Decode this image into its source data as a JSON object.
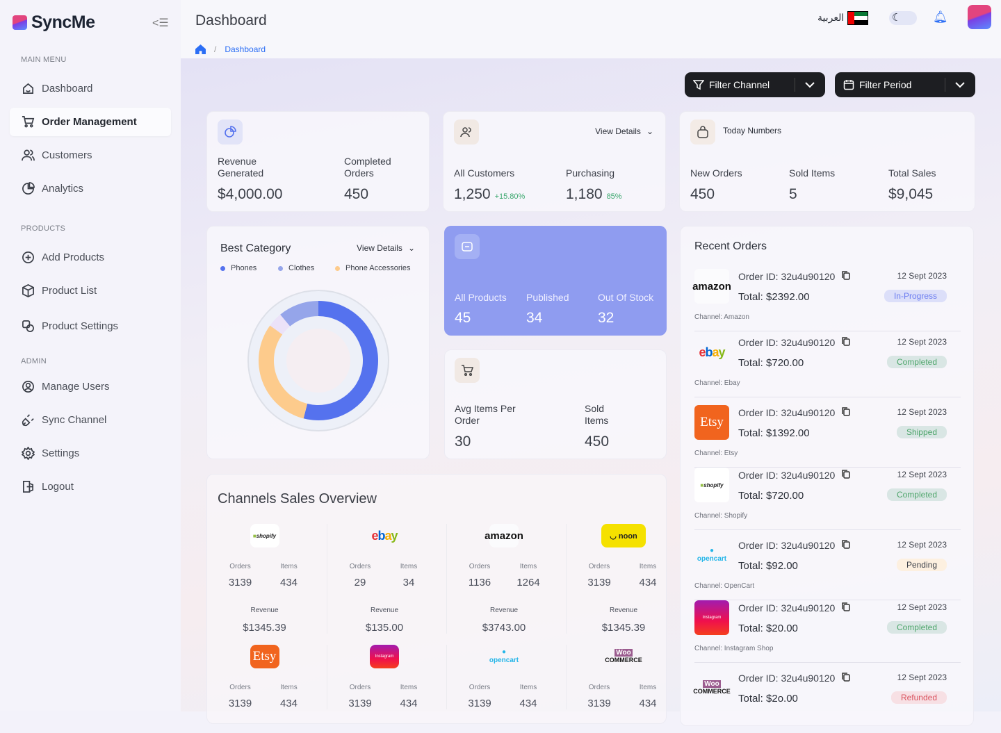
{
  "app": {
    "name": "SyncMe"
  },
  "sidebar": {
    "main_menu": "MAIN MENU",
    "products": "PRODUCTS",
    "admin": "ADMIN",
    "items": [
      {
        "label": "Dashboard",
        "icon": "home-icon"
      },
      {
        "label": "Order Management",
        "icon": "cart-icon",
        "active": true
      },
      {
        "label": "Customers",
        "icon": "users-icon"
      },
      {
        "label": "Analytics",
        "icon": "pie-chart-icon"
      },
      {
        "label": "Add Products",
        "icon": "plus-circle-icon"
      },
      {
        "label": "Product List",
        "icon": "box-icon"
      },
      {
        "label": "Product Settings",
        "icon": "product-settings-icon"
      },
      {
        "label": "Manage Users",
        "icon": "user-circle-icon"
      },
      {
        "label": "Sync Channel",
        "icon": "plug-icon"
      },
      {
        "label": "Settings",
        "icon": "gear-icon"
      },
      {
        "label": "Logout",
        "icon": "logout-icon"
      }
    ]
  },
  "header": {
    "title": "Dashboard",
    "breadcrumb": "Dashboard",
    "language": "العربية"
  },
  "filters": {
    "channel": "Filter Channel",
    "period": "Filter Period"
  },
  "stats": {
    "revenue": {
      "label1": "Revenue Generated",
      "value1": "$4,000.00",
      "label2": "Completed Orders",
      "value2": "450"
    },
    "customers": {
      "view": "View Details",
      "label1": "All Customers",
      "value1": "1,250",
      "change1": "+15.80%",
      "label2": "Purchasing",
      "value2": "1,180",
      "change2": "85%"
    },
    "today": {
      "title": "Today Numbers",
      "label1": "New Orders",
      "value1": "450",
      "label2": "Sold Items",
      "value2": "5",
      "label3": "Total Sales",
      "value3": "$9,045"
    }
  },
  "best_category": {
    "title": "Best Category",
    "view": "View Details",
    "legend": [
      {
        "name": "Phones",
        "color": "#5572ee"
      },
      {
        "name": "Clothes",
        "color": "#95a5ea"
      },
      {
        "name": "Phone Accessories",
        "color": "#fdcb8c"
      }
    ],
    "segments": [
      {
        "name": "Phones",
        "share": 54,
        "color": "#5572ee"
      },
      {
        "name": "Phone Accessories",
        "share": 31,
        "color": "#fdcb8c"
      },
      {
        "name": "",
        "share": 4,
        "color": "#ebe2f8"
      },
      {
        "name": "Clothes",
        "share": 11,
        "color": "#95a5ea"
      }
    ]
  },
  "products": {
    "label1": "All Products",
    "value1": "45",
    "label2": "Published",
    "value2": "34",
    "label3": "Out Of Stock",
    "value3": "32"
  },
  "avg": {
    "label1": "Avg Items Per Order",
    "value1": "30",
    "label2": "Sold Items",
    "value2": "450"
  },
  "channels": {
    "title": "Channels Sales Overview",
    "orders_label": "Orders",
    "items_label": "Items",
    "revenue_label": "Revenue",
    "list": [
      {
        "name": "shopify",
        "orders": "3139",
        "items": "434",
        "revenue": "$1345.39"
      },
      {
        "name": "ebay",
        "orders": "29",
        "items": "34",
        "revenue": "$135.00"
      },
      {
        "name": "amazon",
        "orders": "1136",
        "items": "1264",
        "revenue": "$3743.00"
      },
      {
        "name": "noon",
        "orders": "3139",
        "items": "434",
        "revenue": "$1345.39"
      },
      {
        "name": "Etsy",
        "orders": "3139",
        "items": "434"
      },
      {
        "name": "Instagram",
        "orders": "3139",
        "items": "434"
      },
      {
        "name": "opencart",
        "orders": "3139",
        "items": "434"
      },
      {
        "name": "WOO COMMERCE",
        "orders": "3139",
        "items": "434"
      }
    ]
  },
  "recent_orders": {
    "title": "Recent Orders",
    "list": [
      {
        "logo": "amazon",
        "id": "Order ID: 32u4u90120",
        "total": "Total: $2392.00",
        "date": "12 Sept 2023",
        "status": "In-Progress",
        "channel": "Channel: Amazon"
      },
      {
        "logo": "ebay",
        "id": "Order ID: 32u4u90120",
        "total": "Total: $720.00",
        "date": "12 Sept 2023",
        "status": "Completed",
        "channel": "Channel: Ebay"
      },
      {
        "logo": "Etsy",
        "id": "Order ID: 32u4u90120",
        "total": "Total: $1392.00",
        "date": "12 Sept 2023",
        "status": "Shipped",
        "channel": "Channel: Etsy"
      },
      {
        "logo": "shopify",
        "id": "Order ID: 32u4u90120",
        "total": "Total: $720.00",
        "date": "12 Sept 2023",
        "status": "Completed",
        "channel": "Channel: Shopify"
      },
      {
        "logo": "opencart",
        "id": "Order ID: 32u4u90120",
        "total": "Total: $92.00",
        "date": "12 Sept 2023",
        "status": "Pending",
        "channel": "Channel: OpenCart"
      },
      {
        "logo": "Instagram",
        "id": "Order ID: 32u4u90120",
        "total": "Total: $20.00",
        "date": "12 Sept 2023",
        "status": "Completed",
        "channel": "Channel: Instagram Shop"
      },
      {
        "logo": "WOO COMMERCE",
        "id": "Order ID: 32u4u90120",
        "total": "Total: $2o.00",
        "date": "12 Sept 2023",
        "status": "Refunded",
        "channel": ""
      }
    ]
  },
  "colors": {
    "accent": "#2b6ef5",
    "products_card": "#8f9cf0",
    "in_progress": "#6b7cf0",
    "completed": "#4da56a",
    "shipped": "#4da56a",
    "pending": "#3b3f48",
    "refunded": "#d9525e"
  }
}
